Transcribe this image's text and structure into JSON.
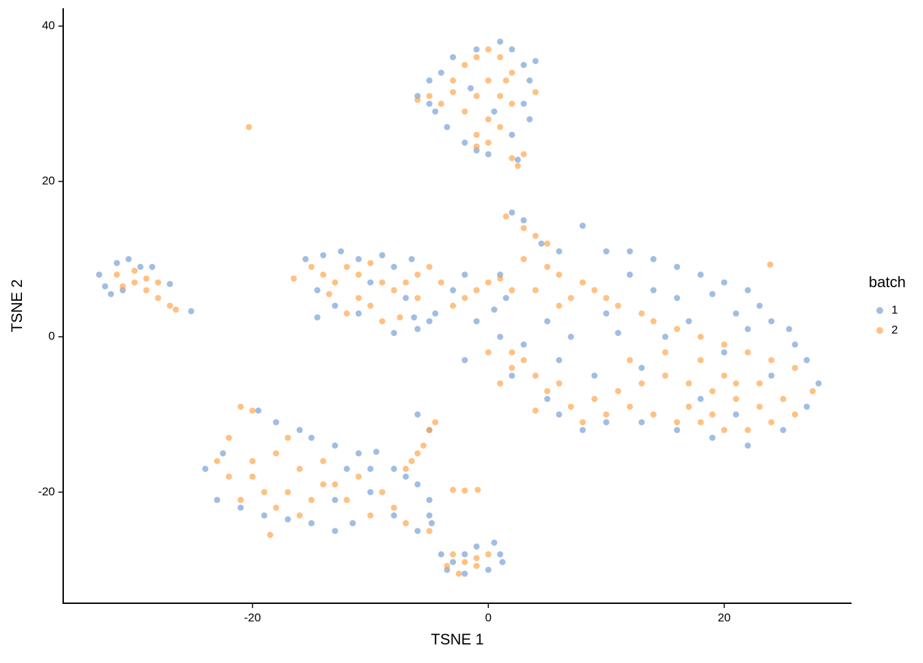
{
  "chart_data": {
    "type": "scatter",
    "x_label": "TSNE 1",
    "y_label": "TSNE 2",
    "legend_title": "batch",
    "legend_position": "right",
    "xlim": [
      -36.05,
      30.8
    ],
    "ylim": [
      -34.3,
      42.3
    ],
    "xticks": [
      -20,
      0,
      20
    ],
    "yticks": [
      -20,
      0,
      20,
      40
    ],
    "grid": false,
    "series": [
      {
        "name": "1",
        "color": "#6f9ad4",
        "x": [
          -4,
          -5,
          -3,
          -1,
          1,
          2,
          3,
          3.5,
          3,
          3.5,
          2,
          -1,
          0,
          -2,
          -3.5,
          -5,
          -6,
          -4.5,
          0.5,
          -1.5,
          2.5,
          4,
          -33,
          -32.5,
          -31.5,
          -30.5,
          -29.5,
          -28.5,
          -31,
          -27,
          -25.2,
          -32,
          -15.5,
          -14,
          -12.5,
          -11,
          -9,
          -8,
          -6.5,
          -14.5,
          -13,
          -11,
          -14.5,
          -8,
          -6,
          -4.5,
          -3,
          -2,
          -7,
          -10,
          -5,
          -6.3,
          2,
          3,
          4.5,
          6,
          8,
          10,
          12,
          14,
          16,
          18,
          20,
          22,
          21,
          23,
          24,
          25.5,
          16,
          19,
          12,
          14,
          10,
          7,
          5,
          3,
          1,
          1,
          -2,
          2,
          5,
          6,
          8,
          10,
          13,
          16,
          19,
          22,
          25,
          27,
          28,
          27,
          26,
          24,
          20,
          17,
          13,
          9,
          6,
          11,
          15,
          22,
          18,
          21,
          1.5,
          0.5,
          -1,
          -22.5,
          -24,
          -23,
          -21,
          -19,
          -17,
          -15,
          -13,
          -11.5,
          -10,
          -15,
          -13,
          -11,
          -10,
          -12,
          -8,
          -7,
          -6,
          -5,
          -5,
          -4.8,
          -6,
          -8,
          -18,
          -16,
          -13,
          -19.5,
          -9.5,
          -3,
          -2,
          -1,
          0.5,
          1,
          1.2,
          0,
          -2,
          -3.5,
          -4,
          -6,
          -5
        ],
        "values": [
          34,
          33,
          36,
          37,
          38,
          37,
          35,
          33,
          30,
          28,
          26,
          24,
          23.5,
          25,
          27,
          30,
          31,
          29,
          29,
          32,
          22.8,
          35.5,
          8,
          6.5,
          9.5,
          10,
          9,
          9,
          6,
          6.8,
          3.3,
          5.5,
          10,
          10.5,
          11,
          10,
          10.5,
          9,
          10,
          6,
          4,
          3,
          2.5,
          0.5,
          1,
          3,
          6,
          8,
          5,
          7,
          2,
          2.5,
          16,
          15,
          12,
          11,
          14.3,
          11,
          11,
          10,
          9,
          8,
          7,
          6,
          3,
          4,
          2,
          1,
          5,
          5.5,
          8,
          6,
          3,
          0,
          2,
          -1,
          0,
          8,
          -3,
          -5,
          -8,
          -10,
          -12,
          -11,
          -11,
          -12,
          -13,
          -14,
          -12,
          -9,
          -6,
          -3,
          -1,
          -5,
          -2,
          2,
          -4,
          -5,
          -3,
          0.5,
          0,
          1,
          -8,
          -10,
          5,
          3.5,
          2,
          -15,
          -17,
          -21,
          -22,
          -23,
          -23.5,
          -24,
          -25,
          -24,
          -20,
          -13,
          -14,
          -15,
          -17,
          -17,
          -17,
          -18,
          -19,
          -21,
          -23,
          -24,
          -25,
          -23,
          -11,
          -12,
          -21,
          -9.5,
          -14.8,
          -29,
          -28,
          -27,
          -26.5,
          -28,
          -29,
          -30,
          -30.5,
          -30,
          -28,
          -10,
          -12
        ]
      },
      {
        "name": "2",
        "color": "#ffa040",
        "x": [
          -5,
          -4,
          -3,
          -2,
          -1,
          0,
          1,
          2,
          0,
          -1,
          1,
          -2,
          0,
          1,
          -1,
          0,
          -1,
          2,
          -3,
          -6,
          1.5,
          4,
          2,
          3,
          2.5,
          -31.5,
          -30,
          -29,
          -28,
          -27,
          -26.5,
          -31,
          -30,
          -29,
          -28,
          -16.5,
          -15,
          -14,
          -13,
          -12,
          -11,
          -10,
          -9,
          -8,
          -7,
          -6,
          -5,
          -4,
          -11,
          -10,
          -9,
          -7.5,
          -12,
          -6,
          -3,
          -2,
          -1,
          0,
          1,
          -13.5,
          1.5,
          3,
          4,
          5,
          3,
          5,
          6,
          8,
          9,
          7,
          10,
          11,
          13,
          4,
          6,
          2,
          14,
          16,
          18,
          20,
          22,
          24,
          26,
          27.5,
          25,
          23,
          21,
          19,
          17,
          15,
          13,
          11,
          9,
          7,
          8,
          10,
          12,
          14,
          16,
          18,
          20,
          22,
          24,
          26,
          23,
          20,
          18,
          15,
          12,
          3,
          2,
          4,
          5,
          6,
          2,
          0,
          1,
          19,
          21,
          17,
          23.9,
          4,
          -21,
          -20,
          -22,
          -23,
          -22,
          -20,
          -18,
          -16,
          -17,
          -19,
          -21,
          -18,
          -15,
          -13,
          -12,
          -10,
          -8,
          -7,
          -5,
          -17,
          -14,
          -20,
          -16,
          -11,
          -9,
          -18.5,
          -14,
          -6,
          -5.5,
          -5,
          -4.5,
          -6.5,
          -7,
          -3,
          -2,
          -1,
          0,
          -3.5,
          -2.5,
          -1,
          -20.3,
          -0.9,
          -3,
          -2
        ],
        "values": [
          31,
          30,
          33,
          35,
          36,
          37,
          36,
          34,
          33,
          31,
          31,
          29,
          28,
          27,
          26,
          25,
          24.5,
          30,
          31.5,
          30.5,
          33,
          31.5,
          23,
          23.5,
          22,
          8,
          7,
          6,
          5,
          4,
          3.5,
          6.5,
          8.5,
          7.5,
          7,
          7.5,
          9,
          8,
          7,
          9,
          8,
          9.5,
          7,
          6,
          7,
          8,
          9,
          7,
          5,
          4,
          2,
          2.5,
          3,
          5,
          4,
          5,
          6,
          7,
          7.5,
          5.5,
          15.5,
          14,
          13,
          12,
          10,
          9,
          8,
          7,
          6,
          5,
          5,
          4,
          3,
          6,
          4,
          6,
          2,
          1,
          0,
          -1,
          -2,
          -3,
          -4,
          -7,
          -8,
          -9,
          -8,
          -7,
          -6,
          -5,
          -6,
          -7,
          -8,
          -9,
          -11,
          -10,
          -9,
          -10,
          -11,
          -11,
          -12,
          -12,
          -11,
          -10,
          -6,
          -5,
          -3,
          -2,
          -3,
          -3,
          -2,
          -5,
          -7,
          -6,
          -4,
          -2,
          -6,
          -10,
          -6,
          -9,
          9.3,
          -9.5,
          -9,
          -9.5,
          -13,
          -16,
          -18,
          -16,
          -15,
          -17,
          -20,
          -20,
          -21,
          -22,
          -21,
          -19,
          -21,
          -23,
          -22,
          -24,
          -25,
          -13,
          -16,
          -18,
          -23,
          -18,
          -20,
          -25.5,
          -19,
          -15,
          -14,
          -12,
          -11,
          -16,
          -17,
          -28,
          -29,
          -28.5,
          -28,
          -29.5,
          -30.5,
          -29.5,
          27,
          -19.7,
          -19.7,
          -19.8
        ]
      }
    ]
  }
}
